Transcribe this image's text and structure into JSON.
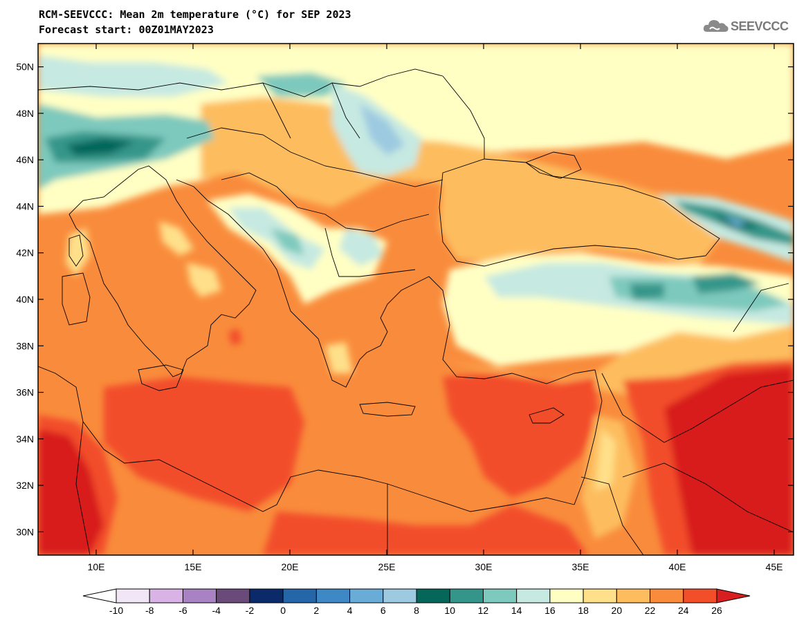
{
  "header": {
    "title": "RCM-SEEVCCC: Mean 2m temperature (°C) for SEP 2023",
    "subtitle": "Forecast start: 00Z01MAY2023"
  },
  "logo": {
    "text": "SEEVCCC",
    "icon": "cloud-icon"
  },
  "map": {
    "projection": "lat-lon",
    "lon_range": [
      7,
      46
    ],
    "lat_range": [
      29,
      51
    ],
    "lat_ticks": [
      "50N",
      "48N",
      "46N",
      "44N",
      "42N",
      "40N",
      "38N",
      "36N",
      "34N",
      "32N",
      "30N"
    ],
    "lon_ticks": [
      "10E",
      "15E",
      "20E",
      "25E",
      "30E",
      "35E",
      "40E",
      "45E"
    ]
  },
  "colorbar": {
    "labels": [
      "-10",
      "-8",
      "-6",
      "-4",
      "-2",
      "0",
      "2",
      "4",
      "6",
      "8",
      "10",
      "12",
      "14",
      "16",
      "18",
      "20",
      "22",
      "24",
      "26"
    ],
    "colors": [
      "#f0e6f6",
      "#d9b3e6",
      "#a982c4",
      "#6a4a78",
      "#0a2a6a",
      "#2566a8",
      "#3d88c5",
      "#6aacd8",
      "#9ecae1",
      "#05665a",
      "#34968a",
      "#7ec9bd",
      "#c6e9e1",
      "#ffffc4",
      "#ffe08a",
      "#fdbd5e",
      "#f98c3c",
      "#f24e2a"
    ],
    "under_color": "#ffffff",
    "over_color": "#d81e1e"
  }
}
